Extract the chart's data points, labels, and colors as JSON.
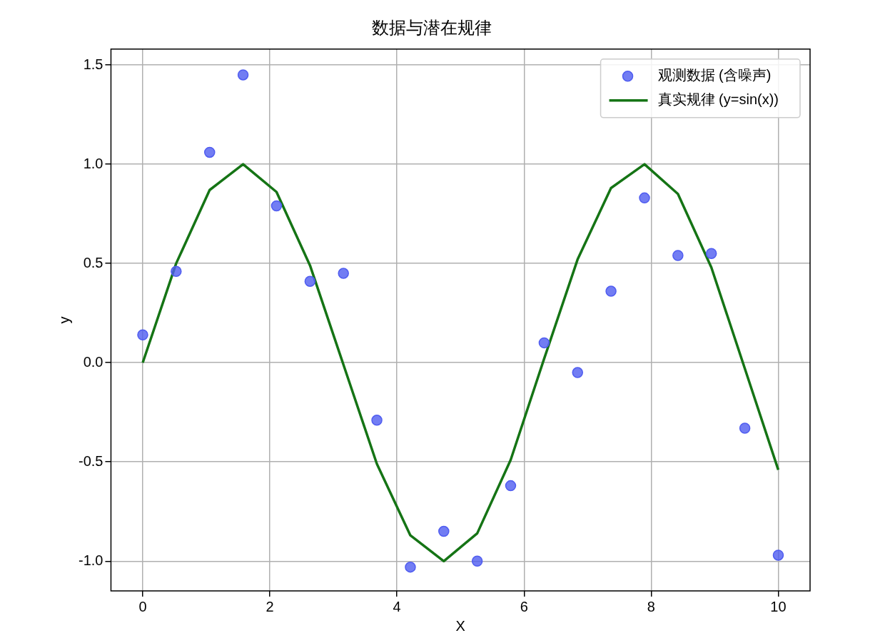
{
  "chart_data": {
    "type": "scatter",
    "title": "数据与潜在规律",
    "xlabel": "X",
    "ylabel": "y",
    "xlim": [
      -0.5,
      10.5
    ],
    "ylim": [
      -1.15,
      1.58
    ],
    "xticks": [
      0,
      2,
      4,
      6,
      8,
      10
    ],
    "yticks": [
      {
        "value": -1,
        "label": "-1.0"
      },
      {
        "value": -0.5,
        "label": "-0.5"
      },
      {
        "value": 0,
        "label": "0.0"
      },
      {
        "value": 0.5,
        "label": "0.5"
      },
      {
        "value": 1,
        "label": "1.0"
      },
      {
        "value": 1.5,
        "label": "1.5"
      }
    ],
    "grid": true,
    "legend": "top right",
    "series": [
      {
        "name": "观测数据 (含噪声)",
        "type": "scatter",
        "marker": "circle",
        "color": "#4f5cf0",
        "x": [
          0,
          0.526,
          1.053,
          1.579,
          2.105,
          2.632,
          3.158,
          3.684,
          4.211,
          4.737,
          5.263,
          5.789,
          6.316,
          6.842,
          7.368,
          7.895,
          8.421,
          8.947,
          9.474,
          10
        ],
        "values": [
          0.14,
          0.46,
          1.06,
          1.45,
          0.79,
          0.41,
          0.45,
          -0.29,
          -1.03,
          -0.85,
          -1.0,
          -0.62,
          0.1,
          -0.05,
          0.36,
          0.83,
          0.54,
          0.55,
          -0.33,
          -0.97
        ]
      },
      {
        "name": "真实规律 (y=sin(x))",
        "type": "line",
        "line_style": "solid",
        "color": "#157415",
        "x": [
          0,
          0.526,
          1.053,
          1.579,
          2.105,
          2.632,
          3.158,
          3.684,
          4.211,
          4.737,
          5.263,
          5.789,
          6.316,
          6.842,
          7.368,
          7.895,
          8.421,
          8.947,
          9.474,
          10
        ],
        "values": [
          0,
          0.5,
          0.87,
          1.0,
          0.86,
          0.49,
          -0.01,
          -0.51,
          -0.87,
          -1.0,
          -0.86,
          -0.49,
          0.02,
          0.52,
          0.88,
          1.0,
          0.85,
          0.48,
          -0.03,
          -0.54
        ]
      }
    ]
  }
}
